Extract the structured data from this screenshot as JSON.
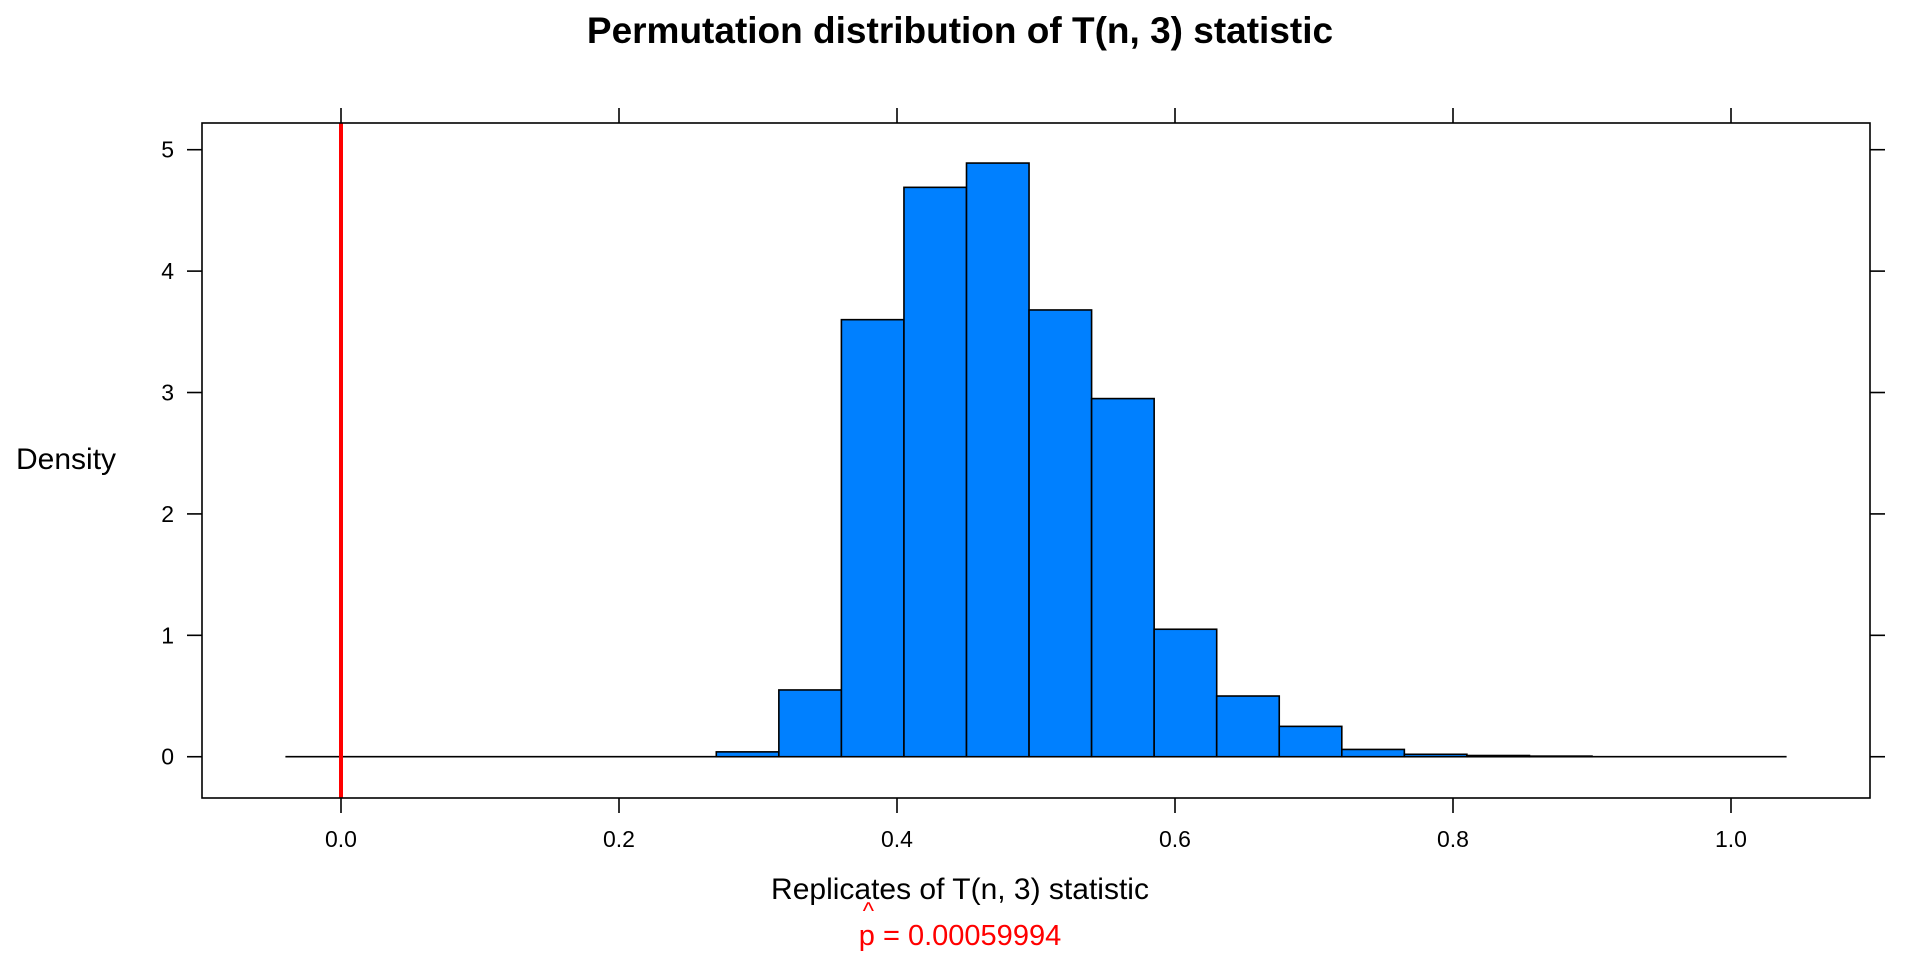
{
  "chart_data": {
    "type": "bar",
    "title": "Permutation distribution of T(n, 3) statistic",
    "xlabel": "Replicates of T(n, 3) statistic",
    "ylabel": "Density",
    "annotation": {
      "symbol": "p",
      "accent": "^",
      "text": " = 0.00059994",
      "color": "#ff0000"
    },
    "xlim": [
      -0.1,
      1.1
    ],
    "ylim": [
      -0.34,
      5.22
    ],
    "xticks": [
      "0.0",
      "0.2",
      "0.4",
      "0.6",
      "0.8",
      "1.0"
    ],
    "xtick_values": [
      0.0,
      0.2,
      0.4,
      0.6,
      0.8,
      1.0
    ],
    "yticks": [
      "0",
      "1",
      "2",
      "3",
      "4",
      "5"
    ],
    "ytick_values": [
      0,
      1,
      2,
      3,
      4,
      5
    ],
    "baseline": [
      -0.04,
      1.04
    ],
    "bin_width": 0.045,
    "bin_starts": [
      0.27,
      0.315,
      0.36,
      0.405,
      0.45,
      0.495,
      0.54,
      0.585,
      0.63,
      0.675,
      0.72,
      0.765,
      0.81,
      0.855
    ],
    "values": [
      0.04,
      0.55,
      3.6,
      4.69,
      4.89,
      3.68,
      2.95,
      1.05,
      0.5,
      0.25,
      0.06,
      0.02,
      0.01,
      0.005
    ],
    "reference_line": {
      "x": 0.0,
      "color": "#ff0000"
    },
    "bar_color": "#0080ff",
    "bar_edge_color": "#000000",
    "grid": false
  }
}
